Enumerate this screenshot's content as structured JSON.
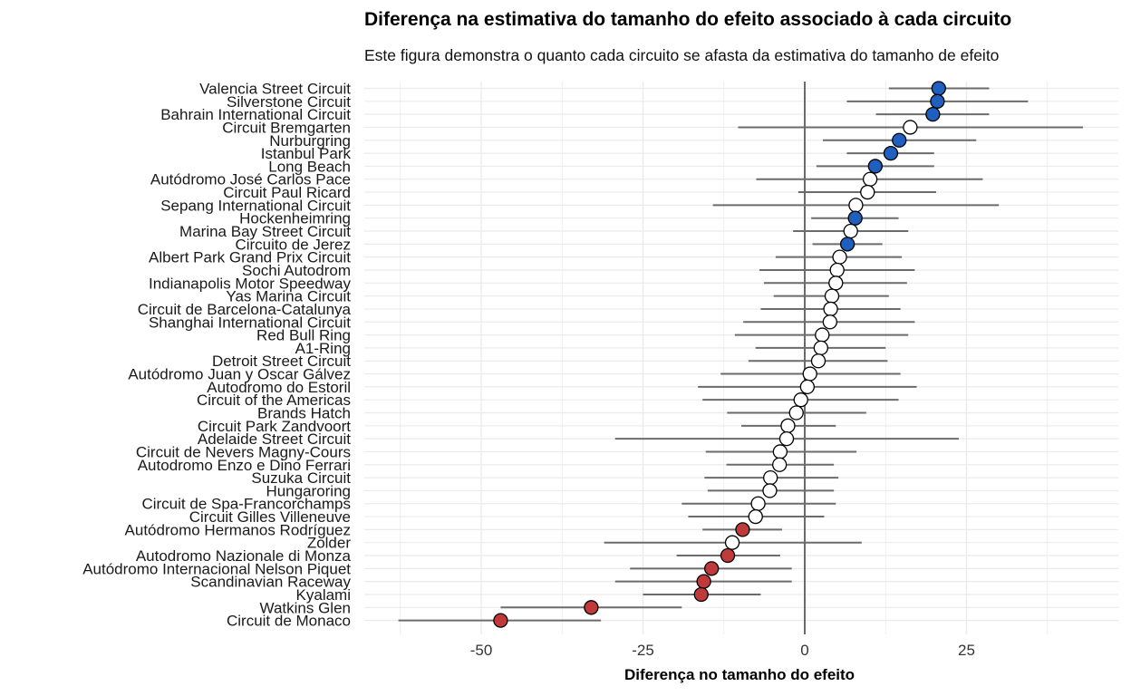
{
  "chart_data": {
    "type": "scatter",
    "title": "Diferença na estimativa do tamanho do efeito associado à cada circuito",
    "subtitle": "Este figura demonstra o quanto cada circuito se afasta da estimativa do tamanho de efeito",
    "xlabel": "Diferença no tamanho do efeito",
    "ylabel": "",
    "xlim": [
      -68,
      48
    ],
    "xticks": [
      -50,
      -25,
      0,
      25
    ],
    "xtick_labels": [
      "-50",
      "-25",
      "0",
      "25"
    ],
    "reference_line_x": 0,
    "grid": true,
    "legend": "none",
    "colors": {
      "above": "#1f5fbf",
      "below": "#c0393b",
      "neutral": "#ffffff",
      "interval": "#6b6b6b",
      "refline": "#6b6b6b",
      "grid": "#ebebeb"
    },
    "circuits": [
      {
        "name": "Valencia Street Circuit",
        "estimate": 20.7,
        "lower": 13.0,
        "upper": 28.5,
        "category": "above"
      },
      {
        "name": "Silverstone Circuit",
        "estimate": 20.5,
        "lower": 6.5,
        "upper": 34.5,
        "category": "above"
      },
      {
        "name": "Bahrain International Circuit",
        "estimate": 19.8,
        "lower": 11.0,
        "upper": 28.5,
        "category": "above"
      },
      {
        "name": "Circuit Bremgarten",
        "estimate": 16.3,
        "lower": -10.3,
        "upper": 43.0,
        "category": "neutral"
      },
      {
        "name": "Nurburgring",
        "estimate": 14.6,
        "lower": 2.8,
        "upper": 26.5,
        "category": "above"
      },
      {
        "name": "Istanbul Park",
        "estimate": 13.3,
        "lower": 6.5,
        "upper": 20.0,
        "category": "above"
      },
      {
        "name": "Long Beach",
        "estimate": 10.9,
        "lower": 1.8,
        "upper": 20.0,
        "category": "above"
      },
      {
        "name": "Autódromo José Carlos Pace",
        "estimate": 10.1,
        "lower": -7.5,
        "upper": 27.5,
        "category": "neutral"
      },
      {
        "name": "Circuit Paul Ricard",
        "estimate": 9.7,
        "lower": -1.0,
        "upper": 20.3,
        "category": "neutral"
      },
      {
        "name": "Sepang International Circuit",
        "estimate": 7.9,
        "lower": -14.2,
        "upper": 30.0,
        "category": "neutral"
      },
      {
        "name": "Hockenheimring",
        "estimate": 7.8,
        "lower": 1.0,
        "upper": 14.5,
        "category": "above"
      },
      {
        "name": "Marina Bay Street Circuit",
        "estimate": 7.1,
        "lower": -1.8,
        "upper": 16.0,
        "category": "neutral"
      },
      {
        "name": "Circuito de Jerez",
        "estimate": 6.6,
        "lower": 1.2,
        "upper": 12.0,
        "category": "above"
      },
      {
        "name": "Albert Park Grand Prix Circuit",
        "estimate": 5.4,
        "lower": -4.5,
        "upper": 15.0,
        "category": "neutral"
      },
      {
        "name": "Sochi Autodrom",
        "estimate": 5.0,
        "lower": -7.0,
        "upper": 17.0,
        "category": "neutral"
      },
      {
        "name": "Indianapolis Motor Speedway",
        "estimate": 4.8,
        "lower": -6.3,
        "upper": 15.8,
        "category": "neutral"
      },
      {
        "name": "Yas Marina Circuit",
        "estimate": 4.2,
        "lower": -4.8,
        "upper": 13.0,
        "category": "neutral"
      },
      {
        "name": "Circuit de Barcelona-Catalunya",
        "estimate": 4.0,
        "lower": -6.8,
        "upper": 14.8,
        "category": "neutral"
      },
      {
        "name": "Shanghai International Circuit",
        "estimate": 3.9,
        "lower": -9.5,
        "upper": 17.0,
        "category": "neutral"
      },
      {
        "name": "Red Bull Ring",
        "estimate": 2.7,
        "lower": -10.8,
        "upper": 16.0,
        "category": "neutral"
      },
      {
        "name": "A1-Ring",
        "estimate": 2.5,
        "lower": -7.6,
        "upper": 12.5,
        "category": "neutral"
      },
      {
        "name": "Detroit Street Circuit",
        "estimate": 2.1,
        "lower": -8.7,
        "upper": 12.8,
        "category": "neutral"
      },
      {
        "name": "Autódromo Juan y Oscar Gálvez",
        "estimate": 0.8,
        "lower": -13.0,
        "upper": 14.8,
        "category": "neutral"
      },
      {
        "name": "Autodromo do Estoril",
        "estimate": 0.4,
        "lower": -16.5,
        "upper": 17.3,
        "category": "neutral"
      },
      {
        "name": "Circuit of the Americas",
        "estimate": -0.6,
        "lower": -15.8,
        "upper": 14.5,
        "category": "neutral"
      },
      {
        "name": "Brands Hatch",
        "estimate": -1.3,
        "lower": -12.0,
        "upper": 9.5,
        "category": "neutral"
      },
      {
        "name": "Circuit Park Zandvoort",
        "estimate": -2.6,
        "lower": -9.8,
        "upper": 4.8,
        "category": "neutral"
      },
      {
        "name": "Adelaide Street Circuit",
        "estimate": -2.8,
        "lower": -29.3,
        "upper": 23.8,
        "category": "neutral"
      },
      {
        "name": "Circuit de Nevers Magny-Cours",
        "estimate": -3.8,
        "lower": -15.3,
        "upper": 8.0,
        "category": "neutral"
      },
      {
        "name": "Autodromo Enzo e Dino Ferrari",
        "estimate": -3.9,
        "lower": -12.1,
        "upper": 4.5,
        "category": "neutral"
      },
      {
        "name": "Suzuka Circuit",
        "estimate": -5.3,
        "lower": -15.5,
        "upper": 5.2,
        "category": "neutral"
      },
      {
        "name": "Hungaroring",
        "estimate": -5.4,
        "lower": -15.0,
        "upper": 4.5,
        "category": "neutral"
      },
      {
        "name": "Circuit de Spa-Francorchamps",
        "estimate": -7.2,
        "lower": -19.0,
        "upper": 4.8,
        "category": "neutral"
      },
      {
        "name": "Circuit Gilles Villeneuve",
        "estimate": -7.6,
        "lower": -18.0,
        "upper": 3.0,
        "category": "neutral"
      },
      {
        "name": "Autódromo Hermanos Rodríguez",
        "estimate": -9.6,
        "lower": -15.8,
        "upper": -3.5,
        "category": "below"
      },
      {
        "name": "Zolder",
        "estimate": -11.2,
        "lower": -31.0,
        "upper": 8.8,
        "category": "neutral"
      },
      {
        "name": "Autodromo Nazionale di Monza",
        "estimate": -11.9,
        "lower": -19.8,
        "upper": -3.8,
        "category": "below"
      },
      {
        "name": "Autódromo Internacional Nelson Piquet",
        "estimate": -14.4,
        "lower": -27.0,
        "upper": -2.0,
        "category": "below"
      },
      {
        "name": "Scandinavian Raceway",
        "estimate": -15.6,
        "lower": -29.3,
        "upper": -2.0,
        "category": "below"
      },
      {
        "name": "Kyalami",
        "estimate": -16.0,
        "lower": -25.0,
        "upper": -6.8,
        "category": "below"
      },
      {
        "name": "Watkins Glen",
        "estimate": -33.0,
        "lower": -47.0,
        "upper": -19.0,
        "category": "below"
      },
      {
        "name": "Circuit de Monaco",
        "estimate": -47.0,
        "lower": -62.8,
        "upper": -31.5,
        "category": "below"
      }
    ]
  }
}
